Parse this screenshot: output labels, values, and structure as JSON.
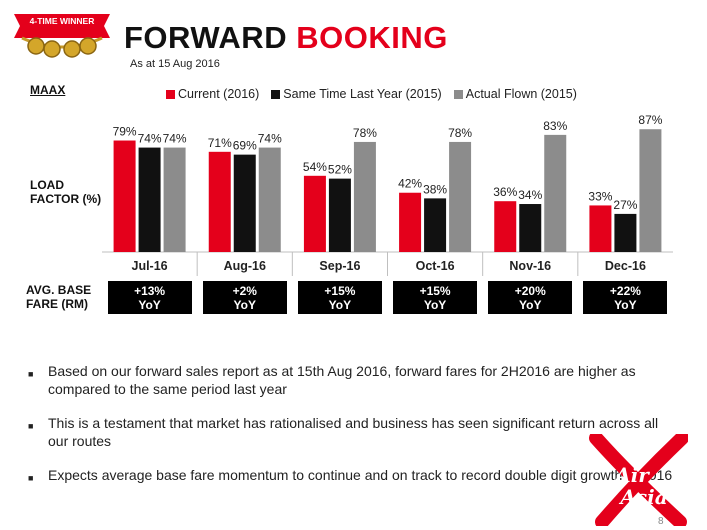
{
  "header": {
    "badge_text": "4-TIME WINNER",
    "title_part1": "FORWARD ",
    "title_part2": "BOOKING",
    "subtitle": "As at 15 Aug 2016",
    "airline": "MAAX"
  },
  "colors": {
    "current": "#e4001b",
    "last_year": "#111111",
    "flown": "#8c8c8c",
    "brand_red": "#e4001b"
  },
  "chart_data": {
    "type": "bar",
    "ylabel": "LOAD FACTOR (%)",
    "categories": [
      "Jul-16",
      "Aug-16",
      "Sep-16",
      "Oct-16",
      "Nov-16",
      "Dec-16"
    ],
    "series": [
      {
        "name": "Current (2016)",
        "values": [
          79,
          71,
          54,
          42,
          36,
          33
        ],
        "labels": [
          "79%",
          "71%",
          "54%",
          "42%",
          "36%",
          "33%"
        ]
      },
      {
        "name": "Same Time Last Year (2015)",
        "values": [
          74,
          69,
          52,
          38,
          34,
          27
        ],
        "labels": [
          "74%",
          "69%",
          "52%",
          "38%",
          "34%",
          "27%"
        ]
      },
      {
        "name": "Actual Flown (2015)",
        "values": [
          74,
          74,
          78,
          78,
          83,
          87
        ],
        "labels": [
          "74%",
          "74%",
          "78%",
          "78%",
          "83%",
          "87%"
        ]
      }
    ],
    "legend": "top"
  },
  "fares": {
    "label_line1": "AVG. BASE",
    "label_line2": "FARE (RM)",
    "items": [
      {
        "change": "+13%",
        "unit": "YoY"
      },
      {
        "change": "+2%",
        "unit": "YoY"
      },
      {
        "change": "+15%",
        "unit": "YoY"
      },
      {
        "change": "+15%",
        "unit": "YoY"
      },
      {
        "change": "+20%",
        "unit": "YoY"
      },
      {
        "change": "+22%",
        "unit": "YoY"
      }
    ]
  },
  "bullets": [
    "Based on our forward sales report as at 15th Aug 2016, forward fares for 2H2016 are higher as compared to the same period last year",
    "This is a testament that market has rationalised and business has seen significant return across all our routes",
    "Expects average base fare momentum to continue and on track to record double digit growth in 2016"
  ],
  "logo": {
    "line1": "Air",
    "line2": "Asia"
  },
  "page_number": "8"
}
